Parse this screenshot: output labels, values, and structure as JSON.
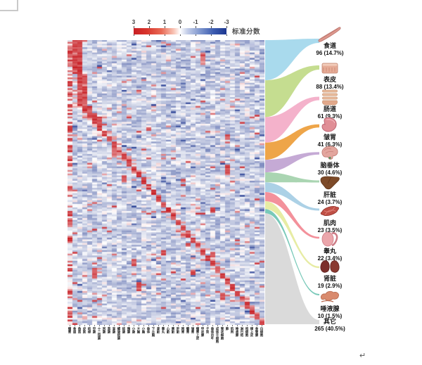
{
  "legend": {
    "title": "标准分数",
    "ticks": [
      "3",
      "2",
      "1",
      "0",
      "-1",
      "-2",
      "-3"
    ]
  },
  "heatmap": {
    "zmin": -3,
    "zmax": 3,
    "x_labels": [
      "瘤胃",
      "食道",
      "角质",
      "皮肤",
      "结缔",
      "空肠",
      "十二指肠",
      "回肠",
      "直肠",
      "盲肠",
      "螺旋结肠",
      "结肠",
      "胰腺",
      "小肠",
      "大脑",
      "小脑",
      "垂体",
      "下丘脑",
      "肾脏",
      "睾丸",
      "心脏",
      "脾脏",
      "肝脏",
      "网胃",
      "瓣胃",
      "皱胃",
      "瘤胃上皮",
      "甲状腺",
      "子宫",
      "垂体后叶",
      "成体干细胞",
      "管状细胞",
      "肺",
      "肌肉",
      "唾液腺",
      "淋巴结",
      "祖细胞",
      "颊上皮",
      "食管腺",
      "白细胞"
    ]
  },
  "organs": [
    {
      "name": "食道",
      "value": 96,
      "count_label": "96 (14.7%)",
      "color": "#a4d8ec",
      "icon": "esophagus-icon"
    },
    {
      "name": "表皮",
      "value": 88,
      "count_label": "88 (13.4%)",
      "color": "#c2db8a",
      "icon": "epidermis-icon"
    },
    {
      "name": "肠道",
      "value": 61,
      "count_label": "61 (9.3%)",
      "color": "#f3aec8",
      "icon": "intestine-icon"
    },
    {
      "name": "皱胃",
      "value": 41,
      "count_label": "41 (6.3%)",
      "color": "#eda03f",
      "icon": "abomasum-icon"
    },
    {
      "name": "脑垂体",
      "value": 30,
      "count_label": "30 (4.6%)",
      "color": "#c2a5d3",
      "icon": "pituitary-icon"
    },
    {
      "name": "肝脏",
      "value": 24,
      "count_label": "24 (3.7%)",
      "color": "#a5d3ae",
      "icon": "liver-icon"
    },
    {
      "name": "肌肉",
      "value": 23,
      "count_label": "23 (3.5%)",
      "color": "#a8cfe5",
      "icon": "muscle-icon"
    },
    {
      "name": "睾丸",
      "value": 22,
      "count_label": "22 (3.4%)",
      "color": "#f28b96",
      "icon": "testis-icon"
    },
    {
      "name": "肾脏",
      "value": 19,
      "count_label": "19 (2.9%)",
      "color": "#e6eb9f",
      "icon": "kidney-icon"
    },
    {
      "name": "唾液腺",
      "value": 10,
      "count_label": "10 (1.5%)",
      "color": "#72c6b5",
      "icon": "salivary-gland-icon"
    },
    {
      "name": "其它",
      "value": 265,
      "count_label": "265 (40.5%)",
      "color": "#d8d8d8",
      "icon": null
    }
  ],
  "misc": {
    "return_mark": "↵"
  },
  "chart_data": [
    {
      "type": "heatmap",
      "title": "",
      "colorbar_label": "标准分数",
      "colorbar_ticks": [
        3,
        2,
        1,
        0,
        -1,
        -2,
        -3
      ],
      "zlim": [
        -3,
        3
      ],
      "colormap": [
        "#c81f25",
        "#ffffff",
        "#1c3690"
      ],
      "columns": [
        "瘤胃",
        "食道",
        "角质",
        "皮肤",
        "结缔",
        "空肠",
        "十二指肠",
        "回肠",
        "直肠",
        "盲肠",
        "螺旋结肠",
        "结肠",
        "胰腺",
        "小肠",
        "大脑",
        "小脑",
        "垂体",
        "下丘脑",
        "肾脏",
        "睾丸",
        "心脏",
        "脾脏",
        "肝脏",
        "网胃",
        "瓣胃",
        "皱胃",
        "瘤胃上皮",
        "甲状腺",
        "子宫",
        "垂体后叶",
        "成体干细胞",
        "管状细胞",
        "肺",
        "肌肉",
        "唾液腺",
        "淋巴结",
        "祖细胞",
        "颊上皮",
        "食管腺",
        "白细胞"
      ],
      "layout": {
        "pattern": "diagonal-high-expression-blocks",
        "grid": false,
        "legend_position": "top"
      }
    },
    {
      "type": "sankey",
      "title": "",
      "nodes": [
        {
          "label": "食道",
          "value": 96,
          "percent": "14.7%",
          "color": "#a4d8ec"
        },
        {
          "label": "表皮",
          "value": 88,
          "percent": "13.4%",
          "color": "#c2db8a"
        },
        {
          "label": "肠道",
          "value": 61,
          "percent": "9.3%",
          "color": "#f3aec8"
        },
        {
          "label": "皱胃",
          "value": 41,
          "percent": "6.3%",
          "color": "#eda03f"
        },
        {
          "label": "脑垂体",
          "value": 30,
          "percent": "4.6%",
          "color": "#c2a5d3"
        },
        {
          "label": "肝脏",
          "value": 24,
          "percent": "3.7%",
          "color": "#a5d3ae"
        },
        {
          "label": "肌肉",
          "value": 23,
          "percent": "3.5%",
          "color": "#a8cfe5"
        },
        {
          "label": "睾丸",
          "value": 22,
          "percent": "3.4%",
          "color": "#f28b96"
        },
        {
          "label": "肾脏",
          "value": 19,
          "percent": "2.9%",
          "color": "#e6eb9f"
        },
        {
          "label": "唾液腺",
          "value": 10,
          "percent": "1.5%",
          "color": "#72c6b5"
        },
        {
          "label": "其它",
          "value": 265,
          "percent": "40.5%",
          "color": "#d8d8d8"
        }
      ]
    }
  ]
}
